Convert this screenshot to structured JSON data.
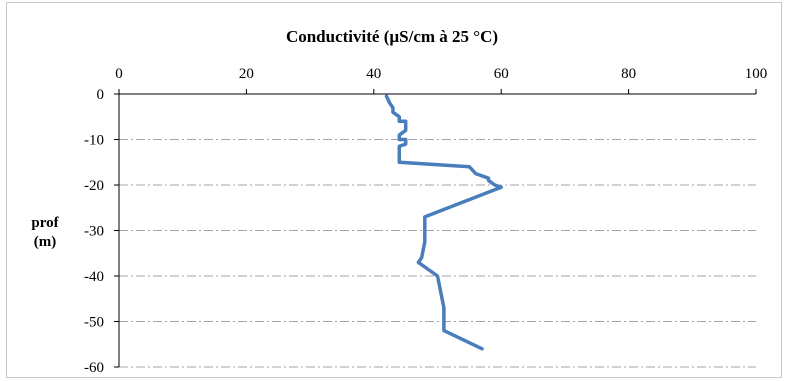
{
  "chart_data": {
    "type": "line",
    "title": "Conductivité (µS/cm à 25 °C)",
    "ylabel": [
      "prof",
      "(m)"
    ],
    "xlabel": "",
    "xlim": [
      0,
      100
    ],
    "ylim": [
      -60,
      0
    ],
    "x_ticks": [
      0,
      20,
      40,
      60,
      80,
      100
    ],
    "y_ticks": [
      0,
      -10,
      -20,
      -30,
      -40,
      -50,
      -60
    ],
    "x_axis_position": "top",
    "grid": "horizontal dash-dot",
    "legend": "none",
    "series": [
      {
        "color": "#4a7ebb",
        "points": [
          [
            42,
            -0.5
          ],
          [
            42.5,
            -2
          ],
          [
            43,
            -3
          ],
          [
            43,
            -4
          ],
          [
            44,
            -5
          ],
          [
            44,
            -6
          ],
          [
            45,
            -6
          ],
          [
            45,
            -8
          ],
          [
            44,
            -9
          ],
          [
            44,
            -10
          ],
          [
            45,
            -10
          ],
          [
            45,
            -11
          ],
          [
            44,
            -11.5
          ],
          [
            44,
            -15
          ],
          [
            55,
            -16
          ],
          [
            56,
            -17.5
          ],
          [
            58,
            -18.5
          ],
          [
            58,
            -19
          ],
          [
            59,
            -20
          ],
          [
            60,
            -20.5
          ],
          [
            48,
            -27
          ],
          [
            48,
            -30
          ],
          [
            48,
            -32.5
          ],
          [
            47.5,
            -36
          ],
          [
            47,
            -37
          ],
          [
            50,
            -40
          ],
          [
            51,
            -47
          ],
          [
            51,
            -52
          ],
          [
            57,
            -56
          ]
        ]
      }
    ]
  }
}
